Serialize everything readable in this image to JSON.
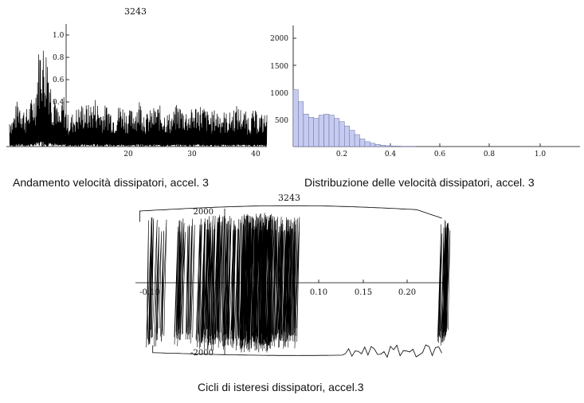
{
  "charts": {
    "velocity": {
      "title": "3243",
      "caption": "Andamento velocità dissipatori, accel. 3",
      "x_ticks": [
        "20",
        "30",
        "40"
      ],
      "y_ticks": [
        "1.0",
        "0.8",
        "0.6",
        "0.4"
      ]
    },
    "histogram": {
      "caption": "Distribuzione delle velocità dissipatori, accel. 3",
      "x_ticks": [
        "0.2",
        "0.4",
        "0.6",
        "0.8",
        "1.0"
      ],
      "y_ticks": [
        "2000",
        "1500",
        "1000",
        "500"
      ]
    },
    "hysteresis": {
      "title": "3243",
      "caption": "Cicli di isteresi dissipatori, accel.3",
      "x_ticks": [
        "-0.10",
        "0.10",
        "0.15",
        "0.20"
      ],
      "y_ticks": [
        "2000",
        "-2000"
      ]
    }
  },
  "chart_data": [
    {
      "type": "line",
      "title": "3243",
      "xlabel": "",
      "ylabel": "",
      "xlim": [
        0,
        41
      ],
      "ylim": [
        0,
        1.1
      ],
      "grid": false,
      "x_ticks": [
        20,
        30,
        40
      ],
      "y_ticks": [
        0.4,
        0.6,
        0.8,
        1.0
      ],
      "series": [
        {
          "x": [
            0.5,
            1,
            2,
            3,
            4,
            4.5,
            5,
            5.5,
            6,
            6.5,
            7,
            7.3,
            7.6,
            8,
            8.5,
            9,
            9.5,
            10,
            11,
            12,
            13,
            14,
            15,
            16,
            17,
            18,
            19,
            20,
            21,
            22,
            23,
            24,
            25,
            26,
            27,
            28,
            29,
            30,
            31,
            32,
            33,
            34,
            35,
            36,
            37,
            38,
            39,
            40,
            41
          ],
          "y": [
            0.3,
            0.28,
            0.48,
            0.32,
            0.45,
            0.5,
            0.85,
            1.05,
            0.9,
            0.95,
            0.62,
            0.45,
            0.6,
            0.35,
            0.3,
            0.5,
            0.3,
            0.28,
            0.35,
            0.4,
            0.38,
            0.45,
            0.35,
            0.4,
            0.3,
            0.42,
            0.32,
            0.35,
            0.45,
            0.3,
            0.35,
            0.38,
            0.32,
            0.3,
            0.4,
            0.35,
            0.33,
            0.4,
            0.38,
            0.3,
            0.35,
            0.33,
            0.3,
            0.38,
            0.35,
            0.3,
            0.33,
            0.3,
            0.3
          ]
        }
      ]
    },
    {
      "type": "bar",
      "title": "",
      "xlabel": "",
      "ylabel": "",
      "bin_width": 0.02,
      "xlim": [
        0,
        1.12
      ],
      "ylim": [
        0,
        2150
      ],
      "x_ticks": [
        0.2,
        0.4,
        0.6,
        0.8,
        1.0
      ],
      "y_ticks": [
        500,
        1000,
        1500,
        2000
      ],
      "bin_starts": [
        0.0,
        0.02,
        0.04,
        0.06,
        0.08,
        0.1,
        0.12,
        0.14,
        0.16,
        0.18,
        0.2,
        0.22,
        0.24,
        0.26,
        0.28,
        0.3,
        0.32,
        0.34,
        0.36,
        0.38,
        0.4,
        0.42,
        0.44,
        0.46
      ],
      "values": [
        1050,
        830,
        600,
        540,
        520,
        580,
        600,
        580,
        520,
        460,
        380,
        300,
        220,
        140,
        90,
        60,
        40,
        25,
        15,
        10,
        8,
        5,
        4,
        2
      ]
    },
    {
      "type": "line",
      "title": "3243",
      "xlabel": "",
      "ylabel": "",
      "xlim": [
        -0.12,
        0.24
      ],
      "ylim": [
        -2100,
        2100
      ],
      "x_ticks": [
        -0.1,
        0.1,
        0.15,
        0.2
      ],
      "y_ticks": [
        -2000,
        2000
      ],
      "series": []
    }
  ]
}
